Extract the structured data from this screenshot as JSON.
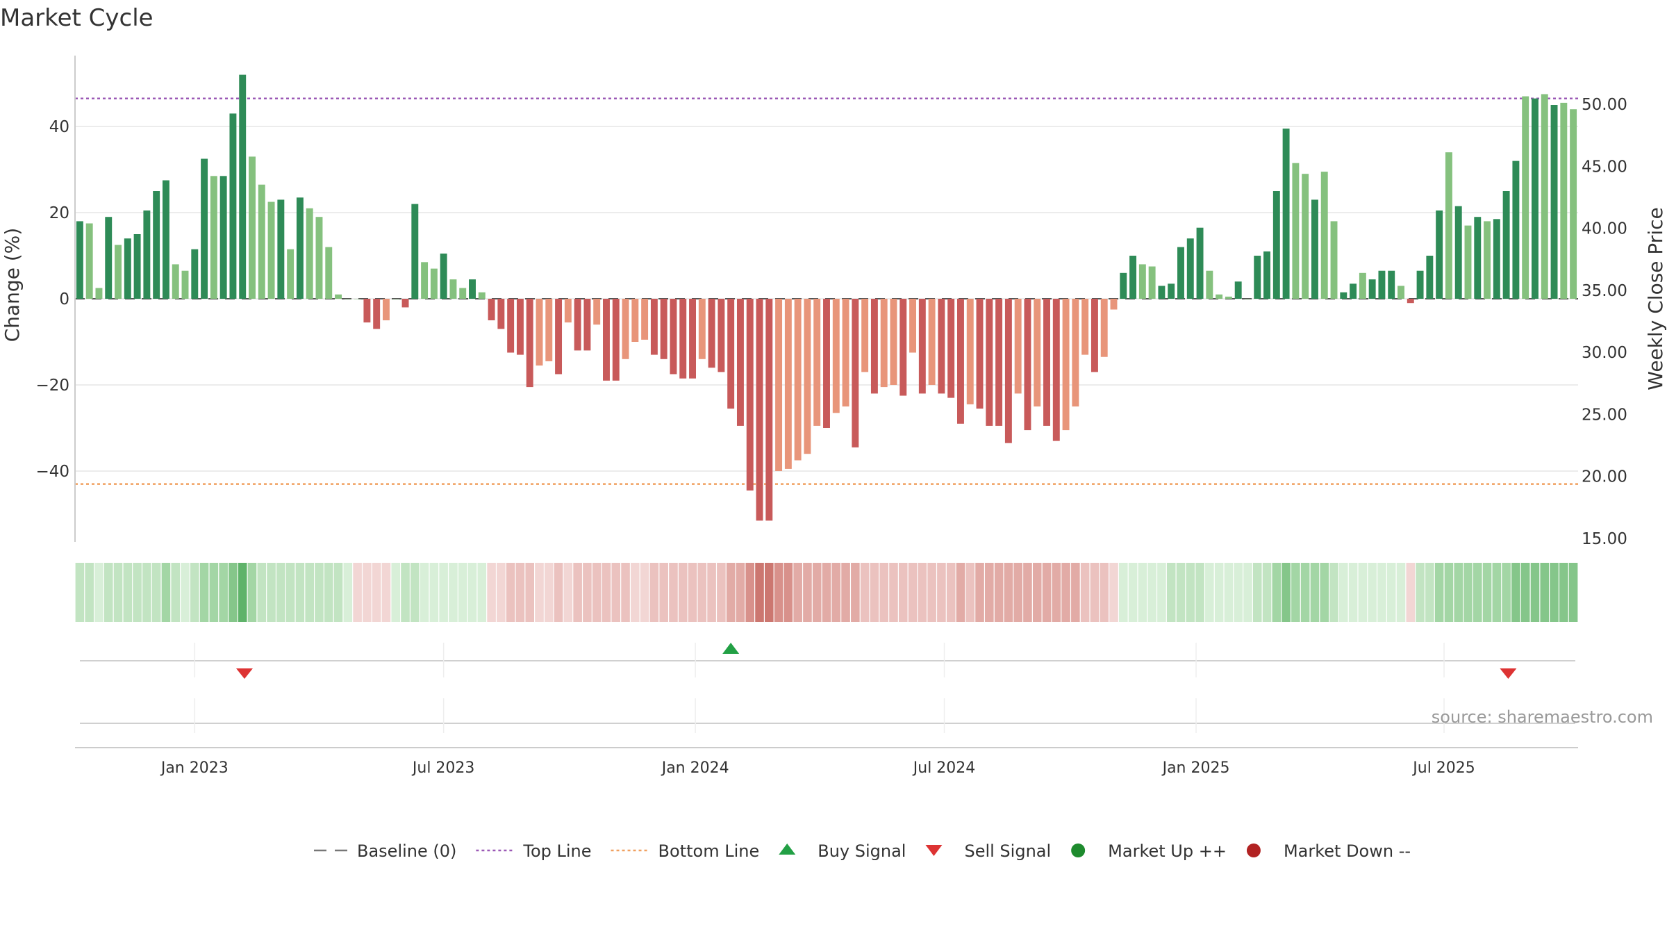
{
  "colors": {
    "up_strong": "#2e8b57",
    "up_weak": "#85c17e",
    "down_strong": "#c85a5a",
    "down_weak": "#e8957a",
    "top_line": "#9b59b6",
    "bottom_line": "#f0a060",
    "buy": "#22a045",
    "sell": "#dd3333",
    "market_up": "#1e8b2e",
    "market_down": "#b22222",
    "grid": "#e6e6e6"
  },
  "chart_data": {
    "type": "bar",
    "title": "Market Cycle",
    "ylabel_left": "Change (%)",
    "ylabel_right": "Weekly Close Price",
    "ylim_left": [
      -56,
      56
    ],
    "left_ticks": [
      40,
      20,
      0,
      -20,
      -40
    ],
    "left_tick_labels": [
      "40",
      "20",
      "0",
      "−20",
      "−40"
    ],
    "right_ticks": [
      50,
      45,
      40,
      35,
      30,
      25,
      20,
      15
    ],
    "right_tick_labels": [
      "50.00",
      "45.00",
      "40.00",
      "35.00",
      "30.00",
      "25.00",
      "20.00",
      "15.00"
    ],
    "ylim_right": [
      15,
      52.6
    ],
    "x_labels": [
      {
        "label": "Jan 2023",
        "week": 12
      },
      {
        "label": "Jul 2023",
        "week": 38
      },
      {
        "label": "Jan 2024",
        "week": 64.3
      },
      {
        "label": "Jul 2024",
        "week": 90.3
      },
      {
        "label": "Jan 2025",
        "week": 116.6
      },
      {
        "label": "Jul 2025",
        "week": 142.5
      }
    ],
    "top_line": 46.5,
    "bottom_line": -43,
    "change_values": [
      18,
      17.5,
      2.5,
      19,
      12.5,
      14,
      15,
      20.5,
      25,
      27.5,
      8,
      6.5,
      11.5,
      32.5,
      28.5,
      28.5,
      43,
      52,
      33,
      26.5,
      22.5,
      23,
      11.5,
      23.5,
      21,
      19,
      12,
      1,
      0,
      0,
      -5.5,
      -7,
      -5,
      0,
      -2,
      22,
      8.5,
      7,
      10.5,
      4.5,
      2.5,
      4.5,
      1.5,
      -5,
      -7,
      -12.5,
      -13,
      -20.5,
      -15.5,
      -14.5,
      -17.5,
      -5.5,
      -12,
      -12,
      -6,
      -19,
      -19,
      -14,
      -10,
      -9.5,
      -13,
      -14,
      -17.5,
      -18.5,
      -18.5,
      -14,
      -16,
      -17,
      -25.5,
      -29.5,
      -44.5,
      -51.5,
      -51.5,
      -40,
      -39.5,
      -37.5,
      -36,
      -29.5,
      -30,
      -26.5,
      -25,
      -34.5,
      -17,
      -22,
      -20.5,
      -20,
      -22.5,
      -12.5,
      -22,
      -20,
      -22,
      -23,
      -29,
      -24.5,
      -25.5,
      -29.5,
      -29.5,
      -33.5,
      -22,
      -30.5,
      -25,
      -29.5,
      -33,
      -30.5,
      -25,
      -13,
      -17,
      -13.5,
      -2.5,
      6,
      10,
      8,
      7.5,
      3,
      3.5,
      12,
      14,
      16.5,
      6.5,
      1,
      0.5,
      4,
      0,
      10,
      11,
      25,
      39.5,
      31.5,
      29,
      23,
      29.5,
      18,
      1.5,
      3.5,
      6,
      4.5,
      6.5,
      6.5,
      3,
      -1,
      6.5,
      10,
      20.5,
      34,
      21.5,
      17,
      19,
      18,
      18.5,
      25,
      32,
      47,
      46.5,
      47.5,
      45,
      45.5,
      44
    ],
    "bar_strength": [
      1,
      0,
      0,
      1,
      0,
      1,
      1,
      1,
      1,
      1,
      0,
      0,
      1,
      1,
      0,
      1,
      1,
      1,
      0,
      0,
      0,
      1,
      0,
      1,
      0,
      0,
      0,
      0,
      0,
      0,
      1,
      1,
      0,
      0,
      1,
      1,
      0,
      0,
      1,
      0,
      0,
      1,
      0,
      1,
      1,
      1,
      1,
      1,
      0,
      0,
      1,
      0,
      1,
      1,
      0,
      1,
      1,
      0,
      0,
      0,
      1,
      1,
      1,
      1,
      1,
      0,
      1,
      1,
      1,
      1,
      1,
      1,
      1,
      0,
      0,
      0,
      0,
      0,
      1,
      0,
      0,
      1,
      0,
      1,
      0,
      0,
      1,
      0,
      1,
      0,
      1,
      1,
      1,
      0,
      1,
      1,
      1,
      1,
      0,
      1,
      0,
      1,
      1,
      0,
      0,
      0,
      1,
      0,
      0,
      1,
      1,
      0,
      0,
      1,
      1,
      1,
      1,
      1,
      0,
      0,
      0,
      1,
      0,
      1,
      1,
      1,
      1,
      0,
      0,
      1,
      0,
      0,
      1,
      1,
      0,
      1,
      1,
      1,
      0,
      1,
      1,
      1,
      1,
      0,
      1,
      0,
      1,
      0,
      1,
      1,
      1,
      0,
      1,
      0,
      1,
      0
    ],
    "heat_levels": [
      2,
      2,
      1,
      2,
      2,
      2,
      2,
      2,
      2,
      3,
      2,
      1,
      2,
      3,
      3,
      3,
      4,
      5,
      3,
      2,
      2,
      2,
      2,
      2,
      2,
      2,
      2,
      2,
      1,
      -1,
      -1,
      -1,
      -1,
      1,
      2,
      2,
      1,
      1,
      1,
      1,
      1,
      1,
      1,
      -1,
      -1,
      -2,
      -2,
      -2,
      -1,
      -1,
      -2,
      -1,
      -2,
      -2,
      -2,
      -2,
      -2,
      -2,
      -1,
      -1,
      -2,
      -2,
      -2,
      -2,
      -2,
      -2,
      -2,
      -2,
      -3,
      -3,
      -4,
      -5,
      -5,
      -4,
      -4,
      -3,
      -3,
      -3,
      -3,
      -3,
      -3,
      -3,
      -2,
      -2,
      -2,
      -2,
      -2,
      -2,
      -2,
      -2,
      -2,
      -2,
      -3,
      -2,
      -3,
      -3,
      -3,
      -3,
      -3,
      -3,
      -3,
      -3,
      -3,
      -3,
      -3,
      -2,
      -2,
      -2,
      -1,
      1,
      1,
      1,
      1,
      1,
      2,
      2,
      2,
      2,
      1,
      1,
      1,
      1,
      1,
      2,
      2,
      3,
      4,
      3,
      3,
      3,
      3,
      2,
      1,
      1,
      1,
      1,
      1,
      1,
      1,
      -1,
      2,
      2,
      3,
      3,
      3,
      3,
      3,
      3,
      3,
      3,
      4,
      4,
      4,
      4,
      4,
      4,
      4
    ],
    "signals": [
      {
        "type": "sell",
        "week": 17.2
      },
      {
        "type": "buy",
        "week": 68
      },
      {
        "type": "sell",
        "week": 149.2
      }
    ]
  },
  "source": "source: sharemaestro.com",
  "legend": [
    {
      "label": "Baseline (0)",
      "kind": "dash",
      "color": "#777777"
    },
    {
      "label": "Top Line",
      "kind": "dot",
      "color": "#9b59b6"
    },
    {
      "label": "Bottom Line",
      "kind": "dot",
      "color": "#f0a060"
    },
    {
      "label": "Buy Signal",
      "kind": "tri-up",
      "color": "#22a045"
    },
    {
      "label": "Sell Signal",
      "kind": "tri-down",
      "color": "#dd3333"
    },
    {
      "label": "Market Up ++",
      "kind": "circle",
      "color": "#1e8b2e"
    },
    {
      "label": "Market Down --",
      "kind": "circle",
      "color": "#b22222"
    }
  ]
}
